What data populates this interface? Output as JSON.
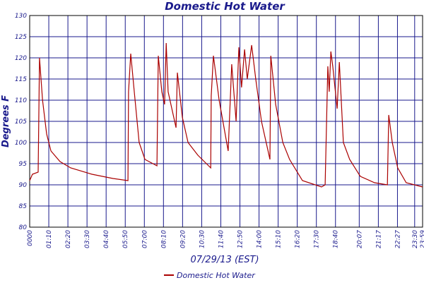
{
  "chart_data": {
    "type": "line",
    "title": "Domestic Hot Water",
    "x_label": "07/29/13 (EST)",
    "y_label": "Degrees F",
    "x": [
      0,
      10,
      31,
      36,
      47,
      62,
      78,
      111,
      150,
      228,
      305,
      360,
      362,
      370,
      383,
      401,
      422,
      466,
      471,
      484,
      494,
      500,
      507,
      536,
      541,
      559,
      580,
      616,
      663,
      665,
      673,
      694,
      727,
      740,
      756,
      766,
      776,
      787,
      797,
      813,
      828,
      849,
      880,
      883,
      901,
      927,
      952,
      999,
      1069,
      1082,
      1092,
      1097,
      1103,
      1110,
      1126,
      1134,
      1149,
      1172,
      1211,
      1263,
      1310,
      1315,
      1328,
      1348,
      1379,
      1439
    ],
    "series": [
      {
        "name": "Domestic Hot Water",
        "color": "#aa0000",
        "values": [
          91,
          92.5,
          93,
          120,
          110,
          102,
          98,
          95.5,
          94,
          92.5,
          91.5,
          91,
          112,
          121,
          112,
          100,
          96,
          94.5,
          120.5,
          112,
          109,
          123.5,
          112,
          103.5,
          116.5,
          106,
          100,
          97,
          94,
          111,
          120.5,
          110,
          98,
          118.5,
          105,
          122.5,
          113,
          122,
          115,
          123,
          115,
          105,
          96,
          120.5,
          109,
          100,
          96,
          91,
          89.5,
          90,
          118,
          112,
          121.5,
          118,
          108,
          119,
          100,
          96,
          92,
          90.5,
          90,
          106.5,
          100,
          94,
          90.5,
          89.5
        ]
      }
    ],
    "xlim": [
      0,
      1439
    ],
    "xticks": [
      {
        "value": 0,
        "label": "0000"
      },
      {
        "value": 70,
        "label": "01:10"
      },
      {
        "value": 140,
        "label": "02:20"
      },
      {
        "value": 210,
        "label": "03:30"
      },
      {
        "value": 280,
        "label": "04:40"
      },
      {
        "value": 350,
        "label": "05:50"
      },
      {
        "value": 420,
        "label": "07:00"
      },
      {
        "value": 490,
        "label": "08:10"
      },
      {
        "value": 560,
        "label": "09:20"
      },
      {
        "value": 630,
        "label": "10:30"
      },
      {
        "value": 700,
        "label": "11:40"
      },
      {
        "value": 770,
        "label": "12:50"
      },
      {
        "value": 840,
        "label": "14:00"
      },
      {
        "value": 910,
        "label": "15:10"
      },
      {
        "value": 980,
        "label": "16:20"
      },
      {
        "value": 1050,
        "label": "17:30"
      },
      {
        "value": 1120,
        "label": "18:40"
      },
      {
        "value": 1207,
        "label": "20:07"
      },
      {
        "value": 1277,
        "label": "21:17"
      },
      {
        "value": 1347,
        "label": "22:27"
      },
      {
        "value": 1410,
        "label": "23:30"
      },
      {
        "value": 1439,
        "label": "23:59"
      }
    ],
    "ylim": [
      80,
      130
    ],
    "yticks": [
      80,
      85,
      90,
      95,
      100,
      105,
      110,
      115,
      120,
      125,
      130
    ],
    "grid": true,
    "grid_color": "#1a1a8c",
    "legend": "bottom"
  }
}
